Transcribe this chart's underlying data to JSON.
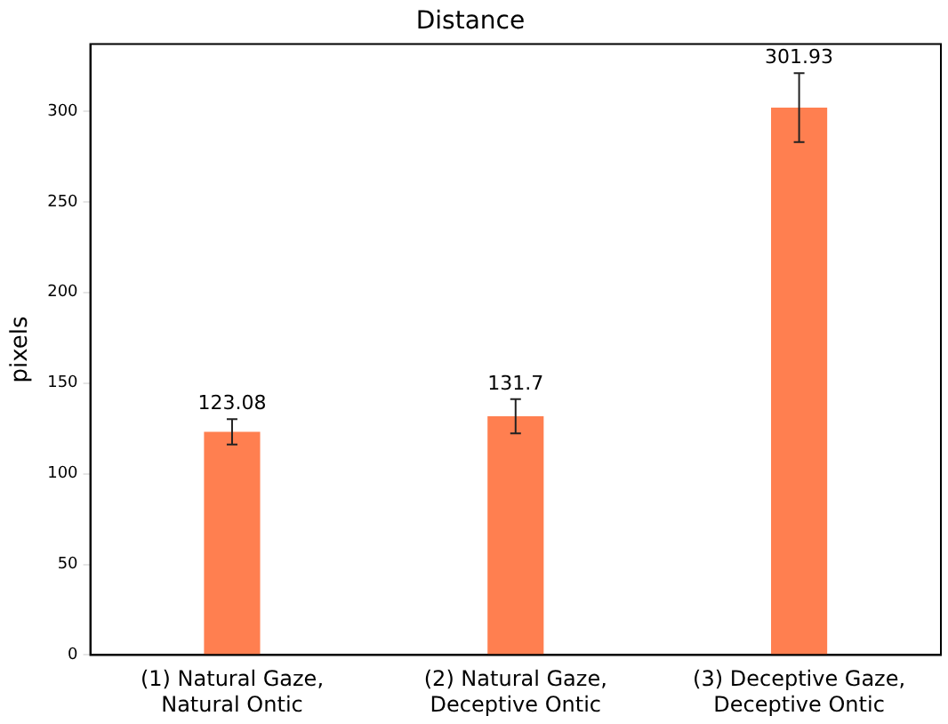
{
  "chart_data": {
    "type": "bar",
    "title": "Distance",
    "ylabel": "pixels",
    "categories": [
      "(1) Natural Gaze,\nNatural Ontic",
      "(2) Natural Gaze,\nDeceptive Ontic",
      "(3) Deceptive Gaze,\nDeceptive Ontic"
    ],
    "values": [
      123.08,
      131.7,
      301.93
    ],
    "errors": [
      7,
      9.4,
      19
    ],
    "color": "#ff7f50",
    "ylim": [
      0,
      337
    ],
    "yticks": [
      0,
      50,
      100,
      150,
      200,
      250,
      300
    ],
    "data_labels": true,
    "grid": false,
    "legend": false
  }
}
